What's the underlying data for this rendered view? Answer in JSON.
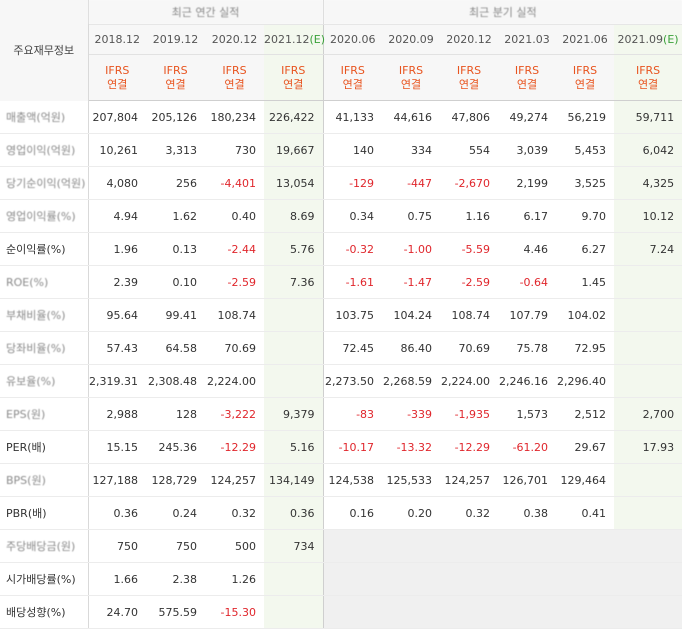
{
  "table": {
    "title": "주요재무정보",
    "groups": [
      "최근 연간 실적",
      "최근 분기 실적"
    ],
    "dates": [
      "2018.12",
      "2019.12",
      "2020.12",
      "2021.12(E)",
      "2020.06",
      "2020.09",
      "2020.12",
      "2021.03",
      "2021.06",
      "2021.09(E)"
    ],
    "ifrs": "IFRS",
    "basis": "연결",
    "rows": [
      {
        "label": "매출액(억원)",
        "values": [
          "207,804",
          "205,126",
          "180,234",
          "226,422",
          "41,133",
          "44,616",
          "47,806",
          "49,274",
          "56,219",
          "59,711"
        ]
      },
      {
        "label": "영업이익(억원)",
        "values": [
          "10,261",
          "3,313",
          "730",
          "19,667",
          "140",
          "334",
          "554",
          "3,039",
          "5,453",
          "6,042"
        ]
      },
      {
        "label": "당기순이익(억원)",
        "values": [
          "4,080",
          "256",
          "-4,401",
          "13,054",
          "-129",
          "-447",
          "-2,670",
          "2,199",
          "3,525",
          "4,325"
        ]
      },
      {
        "label": "영업이익률(%)",
        "values": [
          "4.94",
          "1.62",
          "0.40",
          "8.69",
          "0.34",
          "0.75",
          "1.16",
          "6.17",
          "9.70",
          "10.12"
        ]
      },
      {
        "label": "순이익률(%)",
        "values": [
          "1.96",
          "0.13",
          "-2.44",
          "5.76",
          "-0.32",
          "-1.00",
          "-5.59",
          "4.46",
          "6.27",
          "7.24"
        ]
      },
      {
        "label": "ROE(%)",
        "values": [
          "2.39",
          "0.10",
          "-2.59",
          "7.36",
          "-1.61",
          "-1.47",
          "-2.59",
          "-0.64",
          "1.45",
          ""
        ]
      },
      {
        "label": "부채비율(%)",
        "values": [
          "95.64",
          "99.41",
          "108.74",
          "",
          "103.75",
          "104.24",
          "108.74",
          "107.79",
          "104.02",
          ""
        ]
      },
      {
        "label": "당좌비율(%)",
        "values": [
          "57.43",
          "64.58",
          "70.69",
          "",
          "72.45",
          "86.40",
          "70.69",
          "75.78",
          "72.95",
          ""
        ]
      },
      {
        "label": "유보율(%)",
        "values": [
          "2,319.31",
          "2,308.48",
          "2,224.00",
          "",
          "2,273.50",
          "2,268.59",
          "2,224.00",
          "2,246.16",
          "2,296.40",
          ""
        ]
      },
      {
        "label": "EPS(원)",
        "values": [
          "2,988",
          "128",
          "-3,222",
          "9,379",
          "-83",
          "-339",
          "-1,935",
          "1,573",
          "2,512",
          "2,700"
        ]
      },
      {
        "label": "PER(배)",
        "values": [
          "15.15",
          "245.36",
          "-12.29",
          "5.16",
          "-10.17",
          "-13.32",
          "-12.29",
          "-61.20",
          "29.67",
          "17.93"
        ]
      },
      {
        "label": "BPS(원)",
        "values": [
          "127,188",
          "128,729",
          "124,257",
          "134,149",
          "124,538",
          "125,533",
          "124,257",
          "126,701",
          "129,464",
          ""
        ]
      },
      {
        "label": "PBR(배)",
        "values": [
          "0.36",
          "0.24",
          "0.32",
          "0.36",
          "0.16",
          "0.20",
          "0.32",
          "0.38",
          "0.41",
          ""
        ]
      },
      {
        "label": "주당배당금(원)",
        "values": [
          "750",
          "750",
          "500",
          "734",
          "",
          "",
          "",
          "",
          "",
          ""
        ]
      },
      {
        "label": "시가배당률(%)",
        "values": [
          "1.66",
          "2.38",
          "1.26",
          "",
          "",
          "",
          "",
          "",
          "",
          ""
        ]
      },
      {
        "label": "배당성향(%)",
        "values": [
          "24.70",
          "575.59",
          "-15.30",
          "",
          "",
          "",
          "",
          "",
          "",
          ""
        ]
      }
    ]
  },
  "colors": {
    "negative": "#e0262c",
    "ifrs": "#e8541f",
    "estimate": "#3aa13a"
  }
}
